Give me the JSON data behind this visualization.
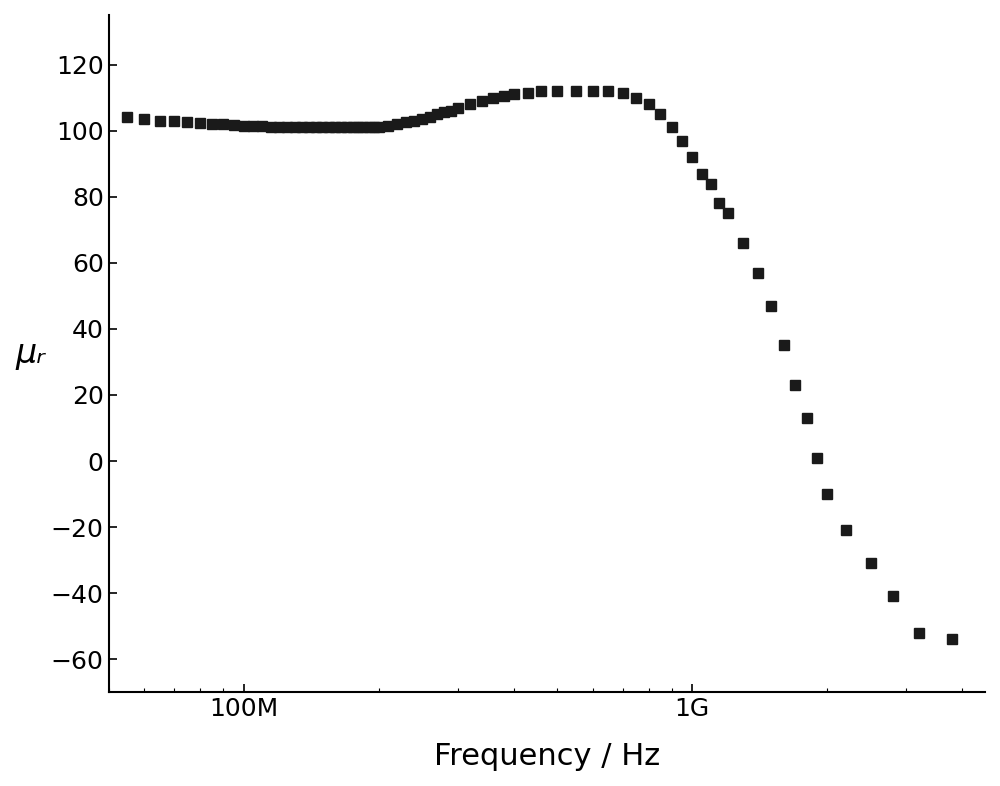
{
  "xlabel": "Frequency / Hz",
  "ylabel": "μᵣ",
  "background_color": "#ffffff",
  "marker_color": "#1a1a1a",
  "marker_size": 7,
  "ylim": [
    -70,
    135
  ],
  "yticks": [
    -60,
    -40,
    -20,
    0,
    20,
    40,
    60,
    80,
    100,
    120
  ],
  "xlim_log": [
    50000000.0,
    4500000000.0
  ],
  "xlabel_fontsize": 22,
  "ylabel_fontsize": 24,
  "tick_fontsize": 18,
  "frequencies": [
    55000000.0,
    60000000.0,
    65000000.0,
    70000000.0,
    75000000.0,
    80000000.0,
    85000000.0,
    90000000.0,
    95000000.0,
    100000000.0,
    105000000.0,
    110000000.0,
    115000000.0,
    120000000.0,
    125000000.0,
    130000000.0,
    135000000.0,
    140000000.0,
    145000000.0,
    150000000.0,
    155000000.0,
    160000000.0,
    165000000.0,
    170000000.0,
    175000000.0,
    180000000.0,
    185000000.0,
    190000000.0,
    195000000.0,
    200000000.0,
    210000000.0,
    220000000.0,
    230000000.0,
    240000000.0,
    250000000.0,
    260000000.0,
    270000000.0,
    280000000.0,
    290000000.0,
    300000000.0,
    320000000.0,
    340000000.0,
    360000000.0,
    380000000.0,
    400000000.0,
    430000000.0,
    460000000.0,
    500000000.0,
    550000000.0,
    600000000.0,
    650000000.0,
    700000000.0,
    750000000.0,
    800000000.0,
    850000000.0,
    900000000.0,
    950000000.0,
    1000000000.0,
    1050000000.0,
    1100000000.0,
    1150000000.0,
    1200000000.0,
    1300000000.0,
    1400000000.0,
    1500000000.0,
    1600000000.0,
    1700000000.0,
    1800000000.0,
    1900000000.0,
    2000000000.0,
    2200000000.0,
    2500000000.0,
    2800000000.0,
    3200000000.0,
    3800000000.0
  ],
  "mu_r": [
    104,
    103.5,
    103,
    102.8,
    102.5,
    102.3,
    102,
    102,
    101.8,
    101.5,
    101.5,
    101.3,
    101.2,
    101.2,
    101,
    101,
    101,
    101,
    101,
    101,
    101,
    101,
    101,
    101,
    101,
    101,
    101,
    101,
    101,
    101.2,
    101.5,
    102,
    102.5,
    103,
    103.5,
    104,
    105,
    105.5,
    106,
    107,
    108,
    109,
    110,
    110.5,
    111,
    111.5,
    112,
    112,
    112,
    112,
    112,
    111.5,
    110,
    108,
    105,
    101,
    97,
    92,
    87,
    84,
    78,
    75,
    66,
    57,
    47,
    35,
    23,
    13,
    1,
    -10,
    -21,
    -31,
    -41,
    -52,
    -54
  ]
}
